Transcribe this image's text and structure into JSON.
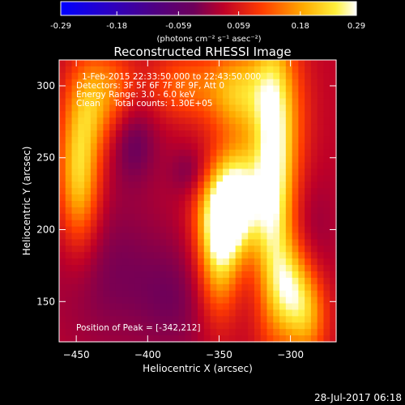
{
  "chart_data": {
    "type": "heatmap",
    "title": "Reconstructed RHESSI Image",
    "xlabel": "Heliocentric X (arcsec)",
    "ylabel": "Heliocentric Y (arcsec)",
    "xlim": [
      -462,
      -268
    ],
    "ylim": [
      122,
      318
    ],
    "x_ticks": [
      -450,
      -400,
      -350,
      -300
    ],
    "y_ticks": [
      150,
      200,
      250,
      300
    ],
    "colorbar": {
      "range": [
        -0.29,
        0.29
      ],
      "ticks": [
        -0.29,
        -0.18,
        -0.059,
        0.059,
        0.18,
        0.29
      ],
      "unit_label": "(photons cm⁻² s⁻¹ asec⁻²)"
    },
    "annotations": [
      "1-Feb-2015 22:33:50.000 to 22:43:50.000",
      "Detectors: 3F 5F 6F 7F 8F 9F, Att 0",
      "Energy Range: 3.0 - 6.0 keV",
      "Clean     Total counts: 1.30E+05",
      "Position of Peak = [-342,212]"
    ],
    "peak": {
      "x": -342,
      "y": 212
    },
    "blobs": [
      {
        "x": -342,
        "y": 212,
        "sx": 14,
        "sy": 22,
        "amp": 0.3
      },
      {
        "x": -350,
        "y": 182,
        "sx": 10,
        "sy": 30,
        "amp": 0.18
      },
      {
        "x": -335,
        "y": 240,
        "sx": 12,
        "sy": 18,
        "amp": 0.1
      },
      {
        "x": -312,
        "y": 238,
        "sx": 10,
        "sy": 70,
        "amp": 0.24
      },
      {
        "x": -300,
        "y": 275,
        "sx": 12,
        "sy": 40,
        "amp": 0.06
      },
      {
        "x": -335,
        "y": 295,
        "sx": 16,
        "sy": 22,
        "amp": 0.18
      },
      {
        "x": -375,
        "y": 300,
        "sx": 18,
        "sy": 16,
        "amp": 0.1
      },
      {
        "x": -300,
        "y": 160,
        "sx": 10,
        "sy": 22,
        "amp": 0.16
      },
      {
        "x": -288,
        "y": 140,
        "sx": 10,
        "sy": 22,
        "amp": 0.14
      },
      {
        "x": -448,
        "y": 238,
        "sx": 10,
        "sy": 34,
        "amp": 0.2
      },
      {
        "x": -438,
        "y": 290,
        "sx": 12,
        "sy": 24,
        "amp": 0.14
      },
      {
        "x": -420,
        "y": 300,
        "sx": 10,
        "sy": 16,
        "amp": 0.06
      },
      {
        "x": -370,
        "y": 240,
        "sx": 10,
        "sy": 12,
        "amp": -0.05
      },
      {
        "x": -410,
        "y": 260,
        "sx": 12,
        "sy": 20,
        "amp": -0.06
      },
      {
        "x": -425,
        "y": 170,
        "sx": 30,
        "sy": 40,
        "amp": -0.05
      },
      {
        "x": -380,
        "y": 150,
        "sx": 18,
        "sy": 28,
        "amp": -0.04
      },
      {
        "x": -285,
        "y": 200,
        "sx": 12,
        "sy": 30,
        "amp": -0.03
      }
    ],
    "grid": false
  },
  "footer": {
    "timestamp": "28-Jul-2017 06:18"
  }
}
